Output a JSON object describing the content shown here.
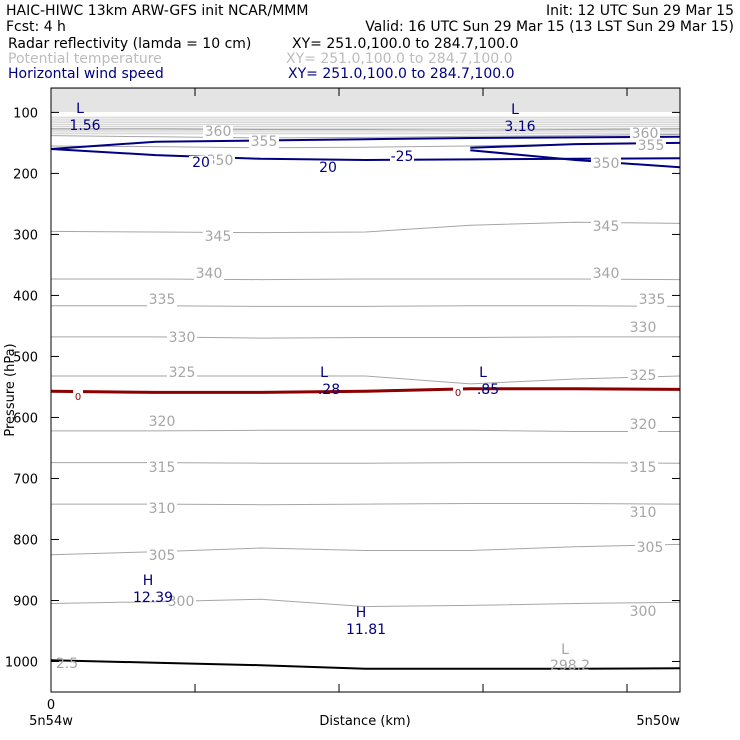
{
  "header": {
    "model_line": "HAIC-HIWC 13km ARW-GFS init   NCAR/MMM",
    "init": "Init: 12 UTC Sun 29 Mar 15",
    "fcst": "Fcst:    4 h",
    "valid": "Valid: 16 UTC Sun 29 Mar 15 (13 LST Sun 29 Mar 15)",
    "fields": [
      {
        "name": "Radar reflectivity (lamda = 10 cm)",
        "xy": "XY= 251.0,100.0 to 284.7,100.0",
        "color": "#000000"
      },
      {
        "name": "Potential temperature",
        "xy": "XY= 251.0,100.0 to 284.7,100.0",
        "color": "#bcbcbc"
      },
      {
        "name": "Horizontal wind speed",
        "xy": "XY= 251.0,100.0 to 284.7,100.0",
        "color": "#000080"
      }
    ]
  },
  "chart_data": {
    "type": "cross-section contour",
    "xlabel": "Distance (km)",
    "ylabel": "Pressure (hPa)",
    "x_ticks": [
      "0"
    ],
    "x_range": [
      0,
      33.7
    ],
    "y_range": [
      1050,
      60
    ],
    "y_ticks": [
      100,
      200,
      300,
      400,
      500,
      600,
      700,
      800,
      900,
      1000
    ],
    "x_endpoint_labels": [
      "5n54w",
      "5n50w"
    ],
    "potential_temperature": {
      "color": "#a6a6a6",
      "contours": [
        {
          "level": 360,
          "p": [
            127,
            127,
            128,
            128,
            129,
            128,
            127
          ]
        },
        {
          "level": 355,
          "p": [
            138,
            140,
            142,
            141,
            139,
            138,
            136
          ]
        },
        {
          "level": 350,
          "p": [
            155,
            156,
            158,
            157,
            155,
            152,
            150
          ]
        },
        {
          "level": 345,
          "p": [
            295,
            296,
            297,
            296,
            285,
            280,
            282
          ]
        },
        {
          "level": 340,
          "p": [
            373,
            373,
            374,
            373,
            373,
            373,
            374
          ]
        },
        {
          "level": 335,
          "p": [
            417,
            417,
            418,
            418,
            417,
            417,
            418
          ]
        },
        {
          "level": 330,
          "p": [
            468,
            468,
            470,
            469,
            469,
            468,
            468
          ]
        },
        {
          "level": 325,
          "p": [
            532,
            532,
            532,
            532,
            545,
            537,
            532
          ]
        },
        {
          "level": 320,
          "p": [
            622,
            622,
            621,
            621,
            621,
            623,
            623
          ]
        },
        {
          "level": 315,
          "p": [
            674,
            674,
            675,
            675,
            674,
            674,
            675
          ]
        },
        {
          "level": 310,
          "p": [
            742,
            742,
            743,
            742,
            741,
            741,
            742
          ]
        },
        {
          "level": 305,
          "p": [
            825,
            820,
            814,
            818,
            818,
            812,
            808
          ]
        },
        {
          "level": 300,
          "p": [
            905,
            902,
            898,
            910,
            908,
            905,
            903
          ]
        },
        {
          "level": 298.2,
          "p": [
            null
          ]
        }
      ],
      "labels": [
        "360",
        "355",
        "350",
        "345",
        "340",
        "335",
        "330",
        "325",
        "320",
        "315",
        "310",
        "305",
        "300",
        "298.2",
        "2.5"
      ],
      "extrema": [
        {
          "kind": "L",
          "value": "298.2"
        }
      ]
    },
    "wind_speed": {
      "color": "#000080",
      "contours": [
        {
          "level": 20,
          "upper_p": [
            160,
            148,
            146,
            144,
            142,
            141,
            140
          ],
          "lower_p": [
            160,
            170,
            176,
            178,
            177,
            176,
            175
          ]
        },
        {
          "level": 25,
          "upper_p": [
            null,
            null,
            null,
            null,
            158,
            152,
            150
          ],
          "lower_p": [
            null,
            null,
            null,
            null,
            162,
            178,
            190
          ]
        }
      ],
      "labels": [
        "20",
        "20",
        "25"
      ],
      "extrema": [
        {
          "kind": "L",
          "value": "1.56"
        },
        {
          "kind": "L",
          "value": "3.16"
        },
        {
          "kind": "L",
          "value": ".28"
        },
        {
          "kind": "L",
          "value": ".85"
        },
        {
          "kind": "H",
          "value": "12.39"
        },
        {
          "kind": "H",
          "value": "11.81"
        }
      ]
    },
    "reflectivity": {
      "color": "#8b0000",
      "level": 0,
      "p": [
        557,
        559,
        559,
        557,
        553,
        553,
        554
      ]
    },
    "terrain": {
      "color": "#000000",
      "p": [
        998,
        1002,
        1006,
        1012,
        1012,
        1012,
        1011
      ]
    },
    "top_hatch_p": 60
  }
}
